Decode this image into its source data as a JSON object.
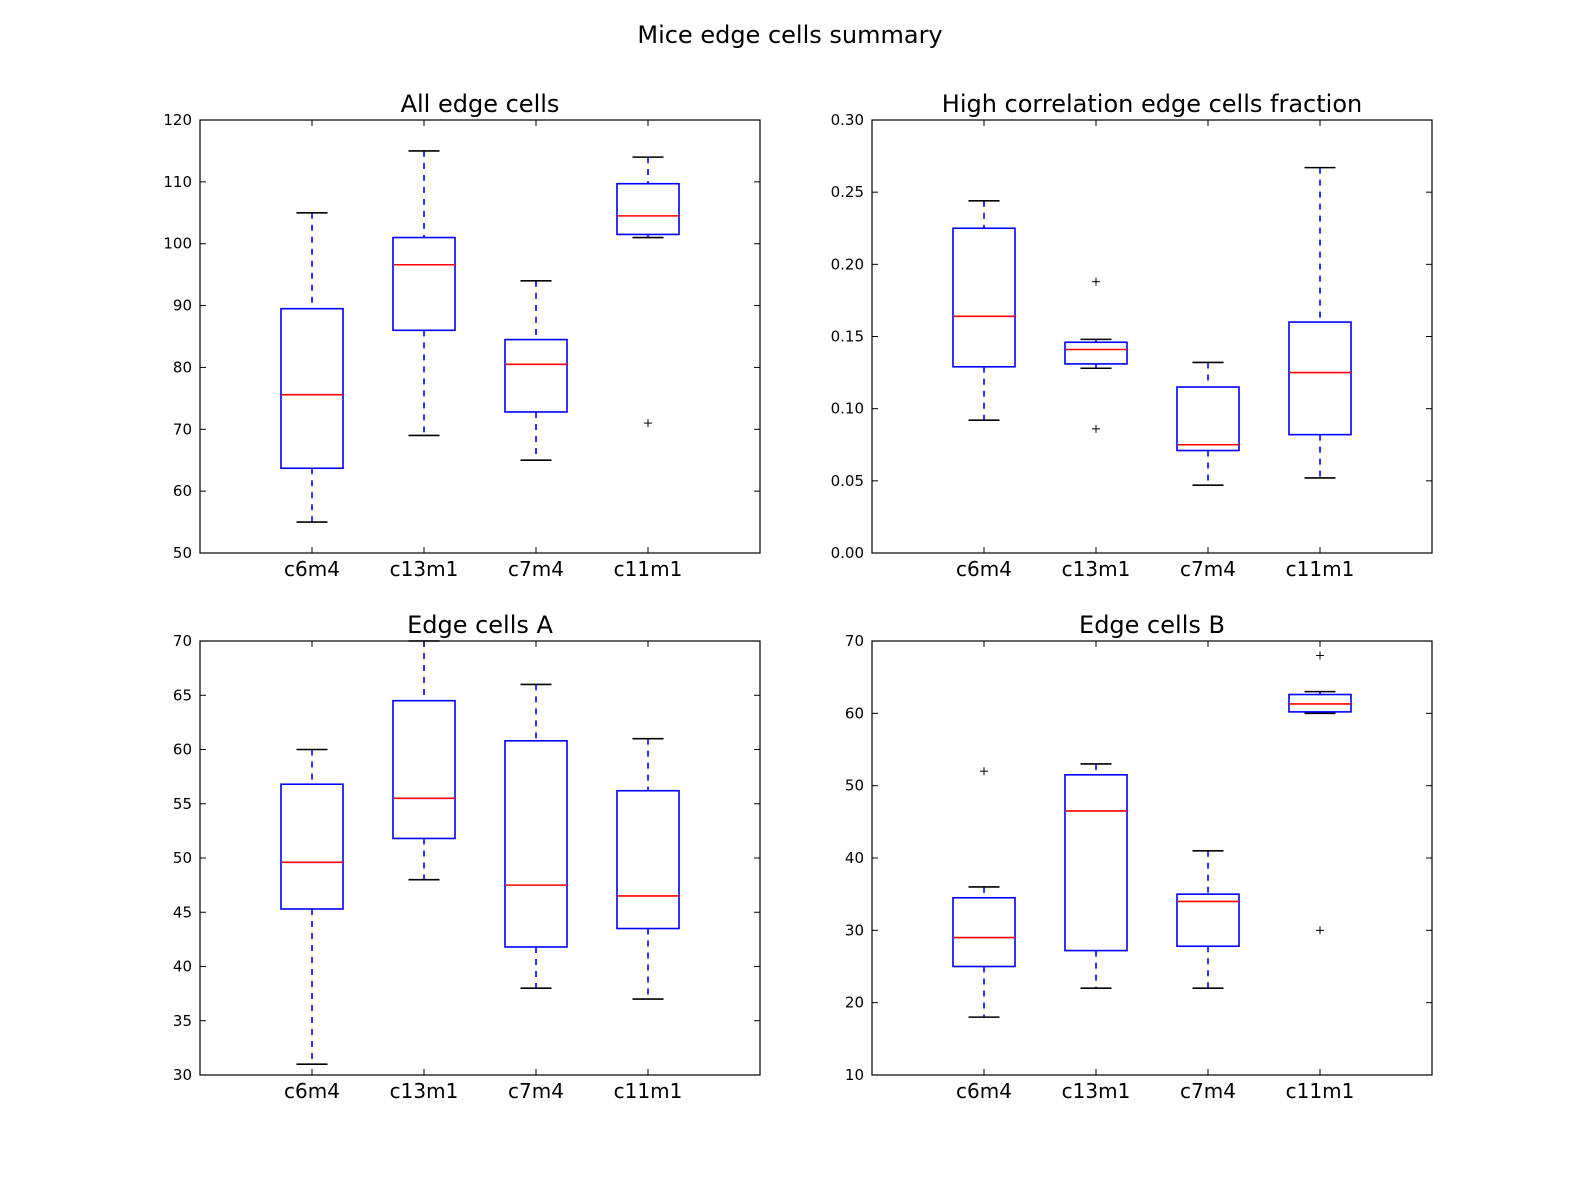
{
  "figure": {
    "title": "Mice edge cells summary"
  },
  "chart_data": [
    {
      "type": "box",
      "title": "All edge cells",
      "categories": [
        "c6m4",
        "c13m1",
        "c7m4",
        "c11m1"
      ],
      "ylim": [
        50,
        120
      ],
      "yticks": [
        50,
        60,
        70,
        80,
        90,
        100,
        110,
        120
      ],
      "ytick_labels": [
        "50",
        "60",
        "70",
        "80",
        "90",
        "100",
        "110",
        "120"
      ],
      "boxes": [
        {
          "whisker_low": 55,
          "q1": 63.7,
          "median": 75.6,
          "q3": 89.5,
          "whisker_high": 105,
          "outliers": []
        },
        {
          "whisker_low": 69,
          "q1": 86,
          "median": 96.6,
          "q3": 101,
          "whisker_high": 115,
          "outliers": []
        },
        {
          "whisker_low": 65,
          "q1": 72.8,
          "median": 80.5,
          "q3": 84.5,
          "whisker_high": 94,
          "outliers": []
        },
        {
          "whisker_low": 101,
          "q1": 101.5,
          "median": 104.5,
          "q3": 109.7,
          "whisker_high": 114,
          "outliers": [
            71
          ]
        }
      ]
    },
    {
      "type": "box",
      "title": "High correlation edge cells fraction",
      "categories": [
        "c6m4",
        "c13m1",
        "c7m4",
        "c11m1"
      ],
      "ylim": [
        0,
        0.3
      ],
      "yticks": [
        0,
        0.05,
        0.1,
        0.15,
        0.2,
        0.25,
        0.3
      ],
      "ytick_labels": [
        "0.00",
        "0.05",
        "0.10",
        "0.15",
        "0.20",
        "0.25",
        "0.30"
      ],
      "boxes": [
        {
          "whisker_low": 0.092,
          "q1": 0.129,
          "median": 0.164,
          "q3": 0.225,
          "whisker_high": 0.244,
          "outliers": []
        },
        {
          "whisker_low": 0.128,
          "q1": 0.131,
          "median": 0.141,
          "q3": 0.146,
          "whisker_high": 0.148,
          "outliers": [
            0.188,
            0.086
          ]
        },
        {
          "whisker_low": 0.047,
          "q1": 0.071,
          "median": 0.075,
          "q3": 0.115,
          "whisker_high": 0.132,
          "outliers": []
        },
        {
          "whisker_low": 0.052,
          "q1": 0.082,
          "median": 0.125,
          "q3": 0.16,
          "whisker_high": 0.267,
          "outliers": []
        }
      ]
    },
    {
      "type": "box",
      "title": "Edge cells A",
      "categories": [
        "c6m4",
        "c13m1",
        "c7m4",
        "c11m1"
      ],
      "ylim": [
        30,
        70
      ],
      "yticks": [
        30,
        35,
        40,
        45,
        50,
        55,
        60,
        65,
        70
      ],
      "ytick_labels": [
        "30",
        "35",
        "40",
        "45",
        "50",
        "55",
        "60",
        "65",
        "70"
      ],
      "boxes": [
        {
          "whisker_low": 31,
          "q1": 45.3,
          "median": 49.6,
          "q3": 56.8,
          "whisker_high": 60,
          "outliers": []
        },
        {
          "whisker_low": 48,
          "q1": 51.8,
          "median": 55.5,
          "q3": 64.5,
          "whisker_high": 70,
          "outliers": []
        },
        {
          "whisker_low": 38,
          "q1": 41.8,
          "median": 47.5,
          "q3": 60.8,
          "whisker_high": 66,
          "outliers": []
        },
        {
          "whisker_low": 37,
          "q1": 43.5,
          "median": 46.5,
          "q3": 56.2,
          "whisker_high": 61,
          "outliers": []
        }
      ]
    },
    {
      "type": "box",
      "title": "Edge cells B",
      "categories": [
        "c6m4",
        "c13m1",
        "c7m4",
        "c11m1"
      ],
      "ylim": [
        10,
        70
      ],
      "yticks": [
        10,
        20,
        30,
        40,
        50,
        60,
        70
      ],
      "ytick_labels": [
        "10",
        "20",
        "30",
        "40",
        "50",
        "60",
        "70"
      ],
      "boxes": [
        {
          "whisker_low": 18,
          "q1": 25,
          "median": 29,
          "q3": 34.5,
          "whisker_high": 36,
          "outliers": [
            52
          ]
        },
        {
          "whisker_low": 22,
          "q1": 27.2,
          "median": 46.5,
          "q3": 51.5,
          "whisker_high": 53,
          "outliers": []
        },
        {
          "whisker_low": 22,
          "q1": 27.8,
          "median": 34,
          "q3": 35,
          "whisker_high": 41,
          "outliers": []
        },
        {
          "whisker_low": 60,
          "q1": 60.2,
          "median": 61.3,
          "q3": 62.6,
          "whisker_high": 63,
          "outliers": [
            68,
            30
          ]
        }
      ]
    }
  ]
}
